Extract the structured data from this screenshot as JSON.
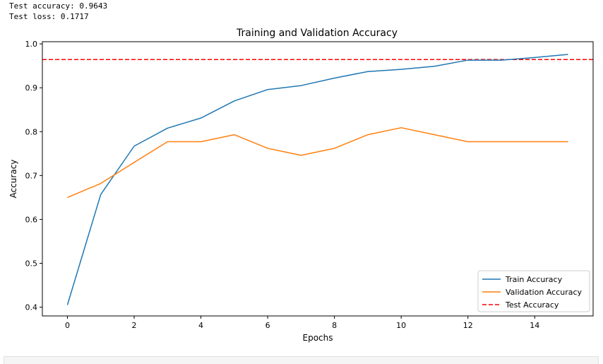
{
  "console": {
    "lines": [
      "Test accuracy: 0.9643",
      "Test loss: 0.1717"
    ]
  },
  "chart_data": {
    "type": "line",
    "title": "Training and Validation Accuracy",
    "xlabel": "Epochs",
    "ylabel": "Accuracy",
    "xlim": [
      -0.75,
      15.75
    ],
    "ylim": [
      0.38,
      1.005
    ],
    "xticks": [
      0,
      2,
      4,
      6,
      8,
      10,
      12,
      14
    ],
    "yticks": [
      0.4,
      0.5,
      0.6,
      0.7,
      0.8,
      0.9,
      1.0
    ],
    "x": [
      0,
      1,
      2,
      3,
      4,
      5,
      6,
      7,
      8,
      9,
      10,
      11,
      12,
      13,
      14,
      15
    ],
    "series": [
      {
        "name": "Train Accuracy",
        "color": "#1f77b4",
        "style": "solid",
        "values": [
          0.405,
          0.657,
          0.767,
          0.808,
          0.831,
          0.87,
          0.896,
          0.905,
          0.922,
          0.937,
          0.942,
          0.949,
          0.963,
          0.963,
          0.969,
          0.976
        ]
      },
      {
        "name": "Validation Accuracy",
        "color": "#ff7f0e",
        "style": "solid",
        "values": [
          0.65,
          0.682,
          0.73,
          0.777,
          0.777,
          0.793,
          0.762,
          0.746,
          0.762,
          0.793,
          0.809,
          0.793,
          0.777,
          0.777,
          0.777,
          0.777
        ]
      }
    ],
    "hlines": [
      {
        "name": "Test Accuracy",
        "color": "#ff0000",
        "style": "dashed",
        "value": 0.9643
      }
    ],
    "legend": "lower-right",
    "grid": false
  }
}
